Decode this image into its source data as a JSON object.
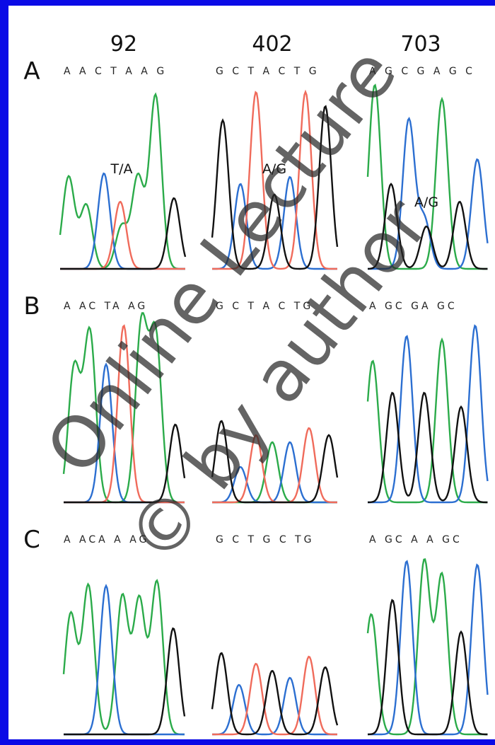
{
  "columns": [
    "92",
    "402",
    "703"
  ],
  "rows": [
    {
      "label": "A",
      "sequences": [
        "A A C T A A G",
        "G C T A C T G",
        "A G C G A G C"
      ],
      "annotations": [
        "T/A",
        "A/G",
        "A/G"
      ]
    },
    {
      "label": "B",
      "sequences": [
        "A AC TA AG",
        "G C T A C TG",
        "A GC GA GC"
      ]
    },
    {
      "label": "C",
      "sequences": [
        "A ACA A AG",
        "G C T G C TG",
        "A GC A A GC"
      ]
    }
  ],
  "watermark": [
    "Online Lecture",
    "© by author"
  ]
}
